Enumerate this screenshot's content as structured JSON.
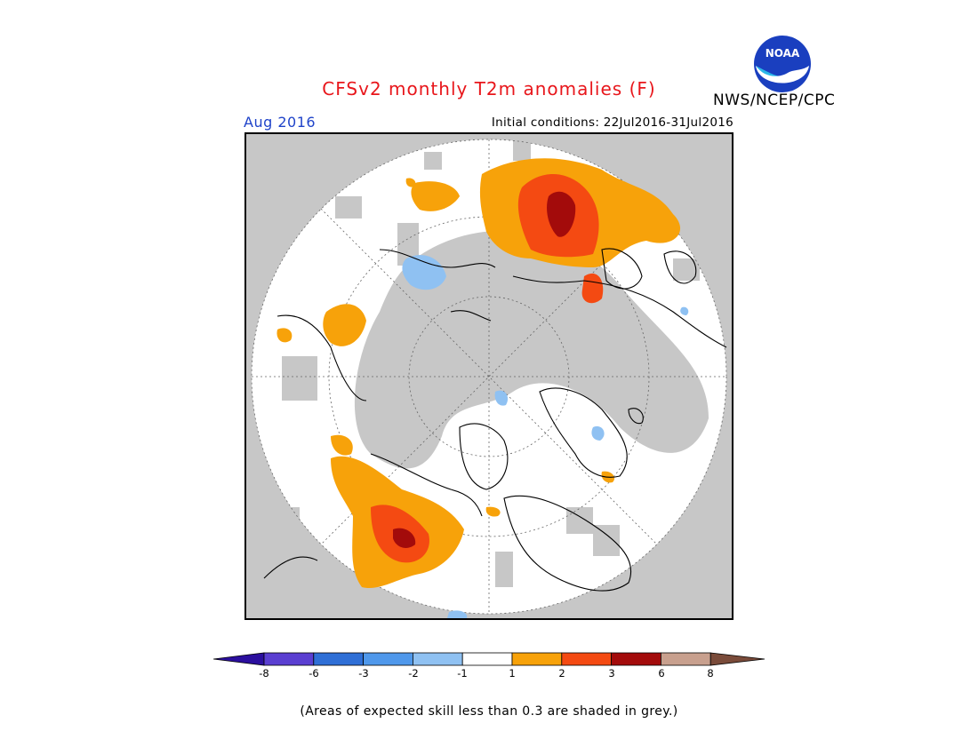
{
  "header": {
    "title": "CFSv2 monthly T2m anomalies (F)",
    "org_label": "NWS/NCEP/CPC",
    "logo_text": "NOAA",
    "month_label": "Aug 2016",
    "init_label": "Initial conditions: 22Jul2016-31Jul2016"
  },
  "colorbar": {
    "ticks": [
      "-8",
      "-6",
      "-3",
      "-2",
      "-1",
      "1",
      "2",
      "3",
      "6",
      "8"
    ],
    "colors": [
      "#2b0f9e",
      "#5a3fd1",
      "#2f6fd6",
      "#4f98eb",
      "#8fc1f2",
      "#ffffff",
      "#f7a20a",
      "#f44a12",
      "#a30b0b",
      "#c8a08e",
      "#7a4b3a"
    ]
  },
  "footnote": "(Areas of expected skill less than 0.3 are shaded in grey.)",
  "colors": {
    "title": "#e8161b",
    "month_label": "#1f43c9",
    "low_skill_grey": "#c7c7c7"
  }
}
